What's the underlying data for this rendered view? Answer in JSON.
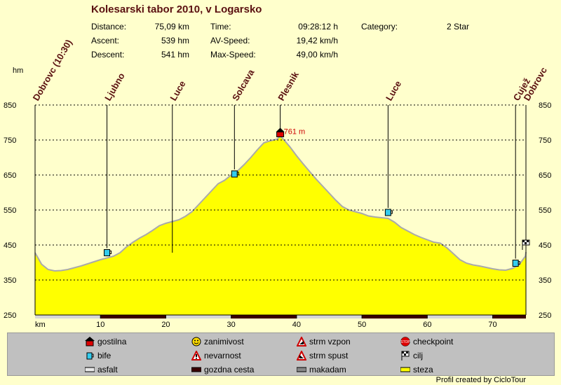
{
  "header": {
    "title": "Kolesarski tabor 2010, v Logarsko",
    "distance_label": "Distance:",
    "distance_value": "75,09 km",
    "ascent_label": "Ascent:",
    "ascent_value": "539 hm",
    "descent_label": "Descent:",
    "descent_value": "541 hm",
    "time_label": "Time:",
    "time_value": "09:28:12 h",
    "avspeed_label": "AV-Speed:",
    "avspeed_value": "19,42 km/h",
    "maxspeed_label": "Max-Speed:",
    "maxspeed_value": "49,00 km/h",
    "category_label": "Category:",
    "category_value": "2 Star"
  },
  "chart_data": {
    "type": "area",
    "ylabel": "hm",
    "xlabel": "km",
    "xlim": [
      0,
      75.09
    ],
    "ylim": [
      250,
      850
    ],
    "x_ticks": [
      10,
      20,
      30,
      40,
      50,
      60,
      70
    ],
    "y_ticks": [
      250,
      350,
      450,
      550,
      650,
      750,
      850
    ],
    "grid": true,
    "x": [
      0,
      1,
      2,
      3,
      4,
      5,
      6,
      7,
      8,
      9,
      10,
      11,
      12,
      13,
      14,
      15,
      16,
      17,
      18,
      19,
      20,
      21,
      22,
      23,
      24,
      25,
      26,
      27,
      28,
      29,
      30,
      31,
      32,
      33,
      34,
      35,
      36,
      37,
      37.5,
      38,
      39,
      40,
      41,
      42,
      43,
      44,
      45,
      46,
      47,
      48,
      49,
      50,
      51,
      52,
      53,
      54,
      55,
      56,
      57,
      58,
      59,
      60,
      61,
      62,
      63,
      64,
      65,
      66,
      67,
      68,
      69,
      70,
      71,
      72,
      73,
      74,
      75,
      75.09
    ],
    "elevation": [
      428,
      395,
      380,
      376,
      377,
      380,
      385,
      390,
      396,
      402,
      408,
      413,
      418,
      428,
      445,
      458,
      470,
      480,
      492,
      505,
      512,
      517,
      522,
      532,
      545,
      565,
      585,
      605,
      625,
      635,
      650,
      662,
      680,
      700,
      722,
      742,
      748,
      752,
      761,
      752,
      730,
      705,
      682,
      660,
      638,
      618,
      598,
      578,
      560,
      550,
      545,
      540,
      533,
      530,
      528,
      526,
      515,
      500,
      490,
      480,
      472,
      465,
      458,
      455,
      442,
      425,
      408,
      398,
      393,
      390,
      386,
      382,
      379,
      378,
      383,
      392,
      418,
      430
    ],
    "waypoints": [
      {
        "km": 0,
        "name": "Dobrovc (10:30)"
      },
      {
        "km": 11,
        "name": "Ljubno"
      },
      {
        "km": 21,
        "name": "Luce"
      },
      {
        "km": 30.5,
        "name": "Solcava"
      },
      {
        "km": 37.5,
        "name": "Plesnik"
      },
      {
        "km": 54,
        "name": "Luce"
      },
      {
        "km": 73.5,
        "name": "Cujež"
      },
      {
        "km": 75.09,
        "name": "Dobrovc"
      }
    ],
    "markers": [
      {
        "km": 11,
        "elev": 425,
        "type": "bife"
      },
      {
        "km": 30.5,
        "elev": 650,
        "type": "bife"
      },
      {
        "km": 37.5,
        "elev": 765,
        "type": "gostilna"
      },
      {
        "km": 54,
        "elev": 540,
        "type": "bife"
      },
      {
        "km": 73.5,
        "elev": 395,
        "type": "bife"
      },
      {
        "km": 75.09,
        "elev": 448,
        "type": "cilj"
      }
    ],
    "peak_label": "761 m",
    "bottom_bar": [
      {
        "from": 0,
        "to": 10,
        "type": "asfalt"
      },
      {
        "from": 10,
        "to": 20,
        "type": "gozdna cesta"
      },
      {
        "from": 20,
        "to": 30,
        "type": "asfalt"
      },
      {
        "from": 30,
        "to": 40,
        "type": "gozdna cesta"
      },
      {
        "from": 40,
        "to": 50,
        "type": "asfalt"
      },
      {
        "from": 50,
        "to": 60,
        "type": "gozdna cesta"
      },
      {
        "from": 60,
        "to": 70,
        "type": "asfalt"
      },
      {
        "from": 70,
        "to": 75.09,
        "type": "gozdna cesta"
      }
    ],
    "colors": {
      "fill": "#ffff00",
      "line": "#aaaaaa",
      "grid": "#000000",
      "waypoint_text": "#5a1010",
      "peak_text": "#cc0000"
    }
  },
  "legend": {
    "items": [
      {
        "label": "gostilna",
        "icon": "house-icon"
      },
      {
        "label": "zanimivost",
        "icon": "smiley-icon"
      },
      {
        "label": "strm vzpon",
        "icon": "warning-up-icon"
      },
      {
        "label": "checkpoint",
        "icon": "stop-icon"
      },
      {
        "label": "bife",
        "icon": "cup-icon"
      },
      {
        "label": "nevarnost",
        "icon": "danger-icon"
      },
      {
        "label": "strm spust",
        "icon": "warning-down-icon"
      },
      {
        "label": "cilj",
        "icon": "flag-icon"
      },
      {
        "label": "asfalt",
        "icon": "gray-bar-icon"
      },
      {
        "label": "gozdna cesta",
        "icon": "darkred-bar-icon"
      },
      {
        "label": "makadam",
        "icon": "darkgray-bar-icon"
      },
      {
        "label": "steza",
        "icon": "yellow-bar-icon"
      }
    ]
  },
  "footer": {
    "credit": "Profil created by CicloTour"
  }
}
